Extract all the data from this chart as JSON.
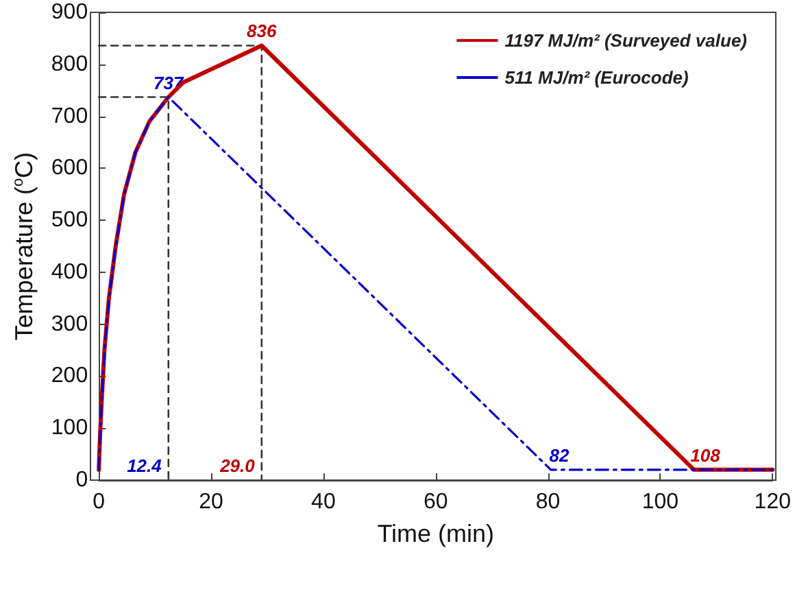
{
  "chart_data": {
    "type": "line",
    "xlabel": "Time (min)",
    "ylabel": "Temperature ($^{o}$C)",
    "xlim": [
      0,
      120
    ],
    "xticks": [
      0,
      20,
      40,
      60,
      80,
      100,
      120
    ],
    "ylim": [
      0,
      900
    ],
    "yticks": [
      0,
      100,
      200,
      300,
      400,
      500,
      600,
      700,
      800,
      900
    ],
    "grid": false,
    "legend": "top right",
    "marker": "none",
    "series": [
      {
        "name": "1197 MJ/m² (Surveyed value)",
        "color": "#c00000",
        "line_style": "solid",
        "x": [
          0,
          0.2,
          0.5,
          1,
          1.8,
          3,
          4.5,
          6.5,
          9,
          12.4,
          15,
          29.0,
          106,
          120
        ],
        "values": [
          20,
          80,
          150,
          250,
          350,
          450,
          550,
          630,
          690,
          737,
          765,
          836,
          20,
          20
        ]
      },
      {
        "name": "511 MJ/m² (Eurocode)",
        "color": "#0000cc",
        "line_style": "dashdot",
        "x": [
          0,
          0.2,
          0.5,
          1,
          1.8,
          3,
          4.5,
          6.5,
          9,
          12.4,
          80.5,
          120
        ],
        "values": [
          20,
          80,
          150,
          250,
          350,
          450,
          550,
          630,
          690,
          737,
          20,
          20
        ]
      },
      {
        "color": "#333333",
        "line_style": "dashed",
        "x": [
          0,
          12.4,
          12.4
        ],
        "values": [
          737,
          737,
          0
        ]
      },
      {
        "color": "#333333",
        "line_style": "dashed",
        "x": [
          0,
          29.0,
          29.0
        ],
        "values": [
          836,
          836,
          0
        ]
      }
    ],
    "annotations": [
      {
        "text": "836",
        "x": 29.0,
        "y": 836
      },
      {
        "text": "737",
        "x": 12.4,
        "y": 737
      },
      {
        "text": "29.0",
        "x": 29.0,
        "y": 0
      },
      {
        "text": "12.4",
        "x": 12.4,
        "y": 0
      },
      {
        "text": "108",
        "x": 108,
        "y": 20
      },
      {
        "text": "82",
        "x": 82,
        "y": 20
      }
    ]
  }
}
